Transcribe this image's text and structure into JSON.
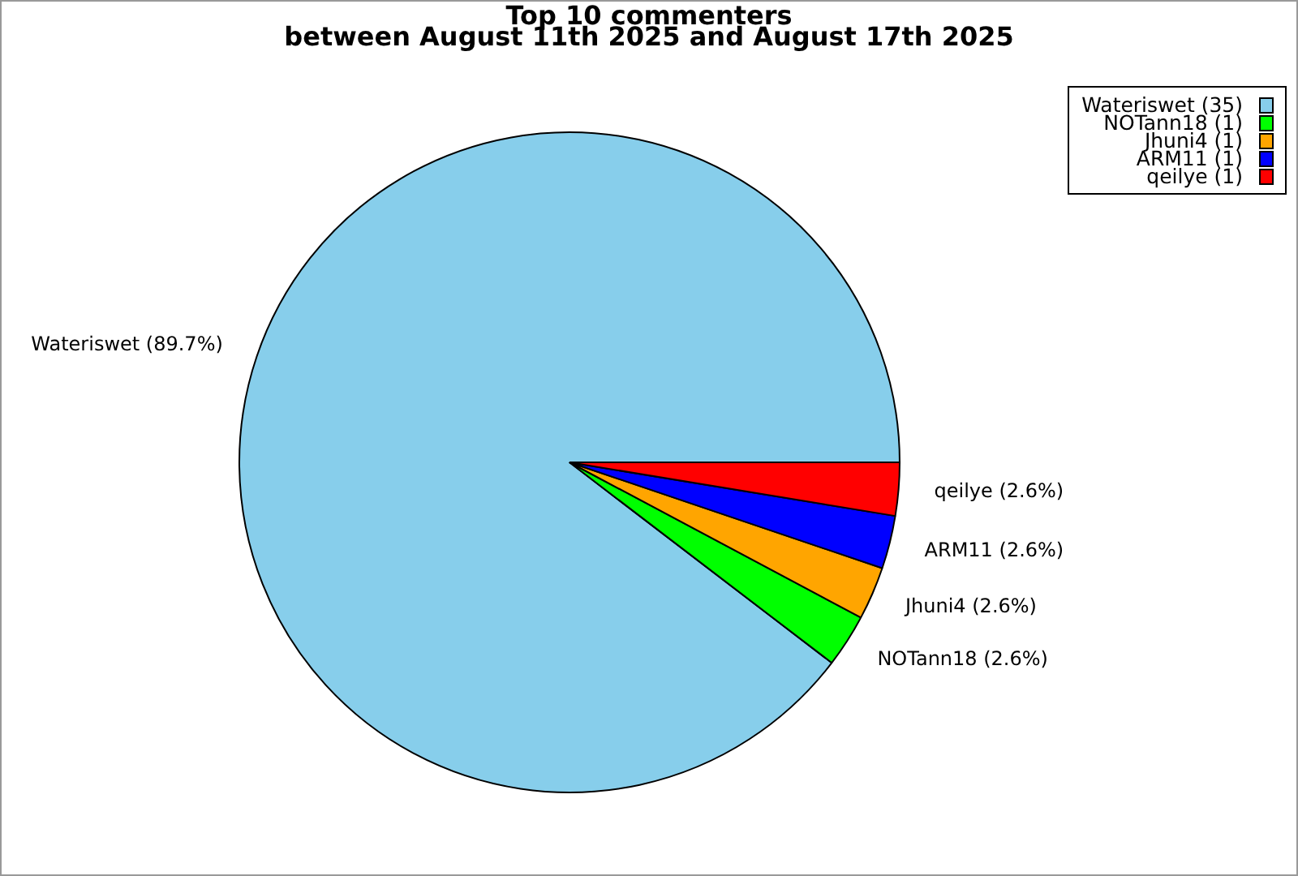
{
  "chart_data": {
    "type": "pie",
    "title": "Top 10 commenters",
    "subtitle": "between August 11th 2025 and August 17th 2025",
    "categories": [
      "Wateriswet (35)",
      "NOTann18 (1)",
      "Jhuni4 (1)",
      "ARM11 (1)",
      "qeilye (1)"
    ],
    "values": [
      89.7,
      2.6,
      2.6,
      2.6,
      2.6
    ],
    "colors": [
      "#87ceeb",
      "#00ff00",
      "#ffa500",
      "#0000ff",
      "#ff0000"
    ],
    "value_labels": [
      "Wateriswet (89.7%)",
      "NOTann18 (2.6%)",
      "Jhuni4 (2.6%)",
      "ARM11 (2.6%)",
      "qeilye (2.6%)"
    ],
    "legend": "top right"
  }
}
